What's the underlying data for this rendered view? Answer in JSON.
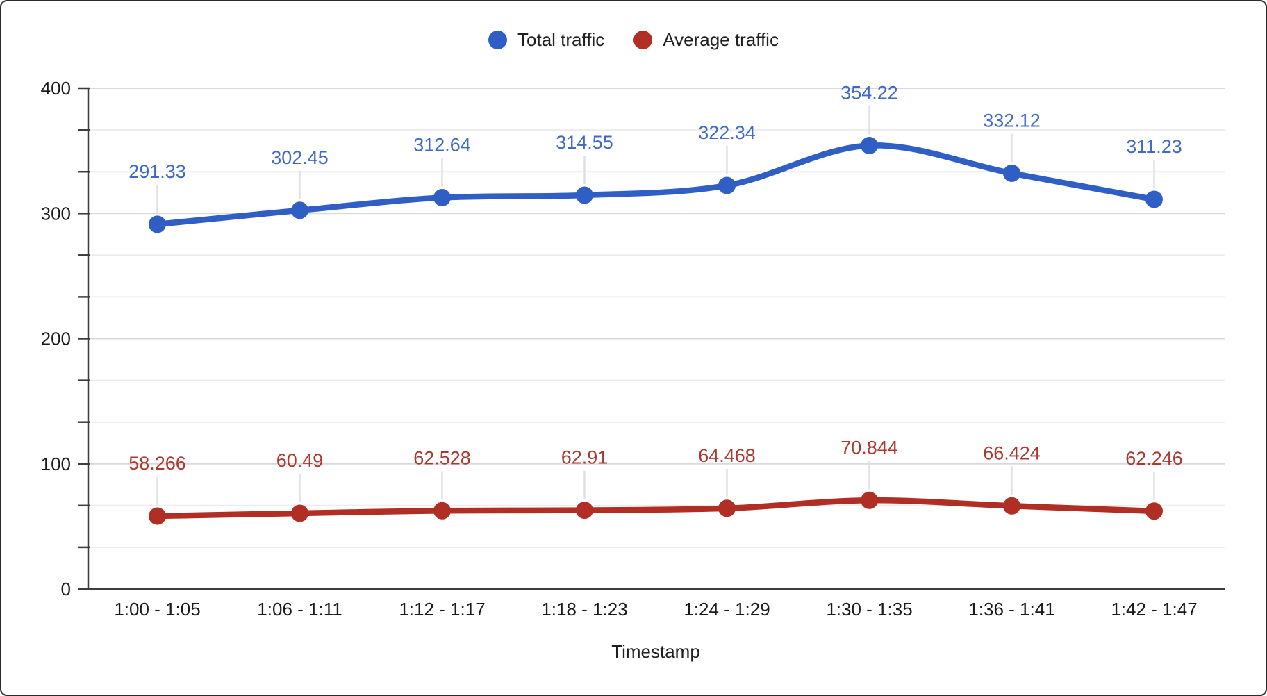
{
  "window": {
    "background": "#ffffff",
    "border_color": "#2a2a2a"
  },
  "legend": {
    "position": "top",
    "items": [
      {
        "label": "Total traffic"
      },
      {
        "label": "Average traffic"
      }
    ]
  },
  "chart_data": {
    "type": "line",
    "smooth": true,
    "title": "",
    "xlabel": "Timestamp",
    "ylabel": "",
    "categories": [
      "1:00 - 1:05",
      "1:06 - 1:11",
      "1:12 - 1:17",
      "1:18 - 1:23",
      "1:24 - 1:29",
      "1:30 - 1:35",
      "1:36 - 1:41",
      "1:42 - 1:47"
    ],
    "series": [
      {
        "name": "Total traffic",
        "color": "#2F5FC5",
        "label_color": "#3E69C9",
        "values": [
          291.33,
          302.45,
          312.64,
          314.55,
          322.34,
          354.22,
          332.12,
          311.23
        ],
        "labels": [
          "291.33",
          "302.45",
          "312.64",
          "314.55",
          "322.34",
          "354.22",
          "332.12",
          "311.23"
        ]
      },
      {
        "name": "Average traffic",
        "color": "#B02E23",
        "label_color": "#AC382D",
        "values": [
          58.266,
          60.49,
          62.528,
          62.91,
          64.468,
          70.844,
          66.424,
          62.246
        ],
        "labels": [
          "58.266",
          "60.49",
          "62.528",
          "62.91",
          "64.468",
          "70.844",
          "66.424",
          "62.246"
        ]
      }
    ],
    "ylim": [
      0,
      400
    ],
    "y_major_ticks": [
      0,
      100,
      200,
      300,
      400
    ],
    "y_minor_ticks_per_interval": 2,
    "grid": true,
    "legend_position": "top",
    "point_labels_visible": true,
    "axis_color": "#3c3c3c",
    "major_grid_color": "#d9d9d9",
    "minor_grid_color": "#ececec",
    "callout_color": "#e0e0e0",
    "tick_label_color": "#1a1a1a",
    "axis_title_color": "#1f1f1f"
  }
}
